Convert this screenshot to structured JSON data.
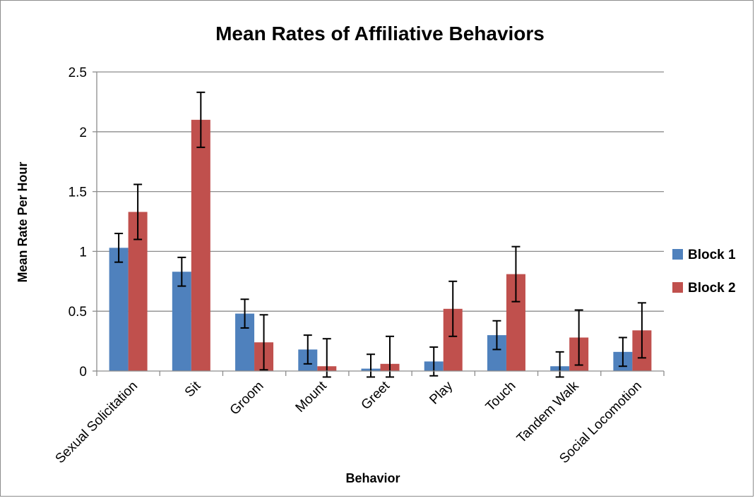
{
  "chart_data": {
    "type": "bar",
    "title": "Mean Rates of Affiliative Behaviors",
    "xlabel": "Behavior",
    "ylabel": "Mean Rate Per Hour",
    "ylim": [
      0,
      2.5
    ],
    "yticks": [
      "0",
      "0.5",
      "1",
      "1.5",
      "2",
      "2.5"
    ],
    "grid": true,
    "legend_position": "right",
    "categories": [
      "Sexual Solicitation",
      "Sit",
      "Groom",
      "Mount",
      "Greet",
      "Play",
      "Touch",
      "Tandem Walk",
      "Social Locomotion"
    ],
    "series": [
      {
        "name": "Block 1",
        "color": "#4f81bd",
        "values": [
          1.03,
          0.83,
          0.48,
          0.18,
          0.02,
          0.08,
          0.3,
          0.04,
          0.16
        ],
        "error": [
          0.12,
          0.12,
          0.12,
          0.12,
          0.12,
          0.12,
          0.12,
          0.12,
          0.12
        ]
      },
      {
        "name": "Block 2",
        "color": "#c0504d",
        "values": [
          1.33,
          2.1,
          0.24,
          0.04,
          0.06,
          0.52,
          0.81,
          0.28,
          0.34
        ],
        "error": [
          0.23,
          0.23,
          0.23,
          0.23,
          0.23,
          0.23,
          0.23,
          0.23,
          0.23
        ]
      }
    ]
  }
}
